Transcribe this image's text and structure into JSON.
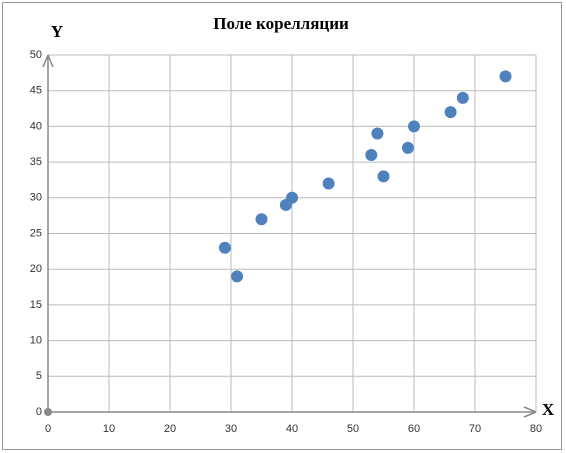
{
  "chart_data": {
    "type": "scatter",
    "title": "Поле корелляции",
    "x_label": "X",
    "y_label": "Y",
    "x": [
      29,
      31,
      35,
      39,
      40,
      46,
      53,
      54,
      55,
      59,
      60,
      66,
      68,
      75
    ],
    "values": [
      23,
      19,
      27,
      29,
      30,
      32,
      36,
      39,
      33,
      37,
      40,
      42,
      44,
      47
    ],
    "color": "#4f81bd",
    "xlim": [
      0,
      80
    ],
    "xticks": [
      0,
      10,
      20,
      30,
      40,
      50,
      60,
      70,
      80
    ],
    "ylim": [
      0,
      50
    ],
    "yticks": [
      0,
      5,
      10,
      15,
      20,
      25,
      30,
      35,
      40,
      45,
      50
    ],
    "grid": true
  }
}
